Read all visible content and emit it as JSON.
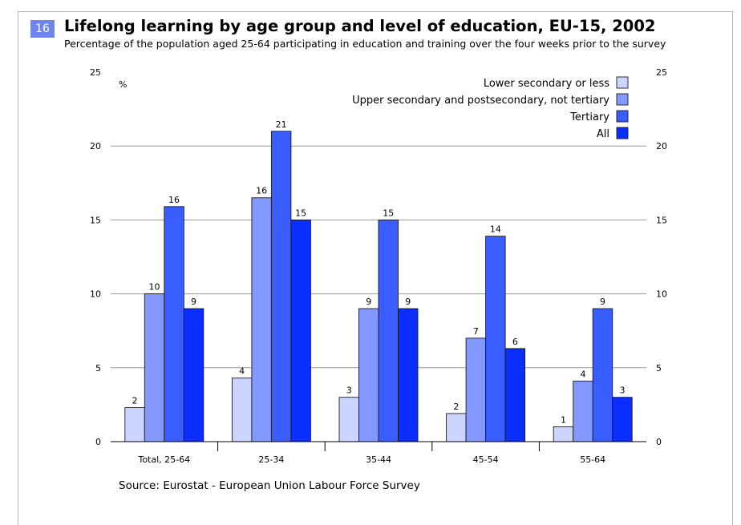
{
  "figure": {
    "number": "16",
    "title": "Lifelong learning by age group and level of education, EU-15, 2002",
    "subtitle": "Percentage of the population aged 25-64 participating in education and training over the four weeks prior to the survey",
    "source": "Source: Eurostat - European Union Labour Force Survey"
  },
  "chart_data": {
    "type": "bar",
    "title": "Lifelong learning by age group and level of education, EU-15, 2002",
    "ylabel": "%",
    "ylim": [
      0,
      25
    ],
    "yticks": [
      0,
      5,
      10,
      15,
      20,
      25
    ],
    "grid": true,
    "legend_position": "top-right",
    "categories": [
      "Total, 25-64",
      "25-34",
      "35-44",
      "45-54",
      "55-64"
    ],
    "series": [
      {
        "name": "Lower secondary or less",
        "color": "#ccd5ff",
        "values": [
          2.3,
          4.3,
          3.0,
          1.9,
          1.0
        ],
        "labels": [
          "2",
          "4",
          "3",
          "2",
          "1"
        ]
      },
      {
        "name": "Upper secondary and postsecondary, not tertiary",
        "color": "#8499ff",
        "values": [
          10.0,
          16.5,
          9.0,
          7.0,
          4.1
        ],
        "labels": [
          "10",
          "16",
          "9",
          "7",
          "4"
        ]
      },
      {
        "name": "Tertiary",
        "color": "#3a5dff",
        "values": [
          15.9,
          21.0,
          15.0,
          13.9,
          9.0
        ],
        "labels": [
          "16",
          "21",
          "15",
          "14",
          "9"
        ]
      },
      {
        "name": "All",
        "color": "#0a2eff",
        "values": [
          9.0,
          15.0,
          9.0,
          6.3,
          3.0
        ],
        "labels": [
          "9",
          "15",
          "9",
          "6",
          "3"
        ]
      }
    ]
  }
}
